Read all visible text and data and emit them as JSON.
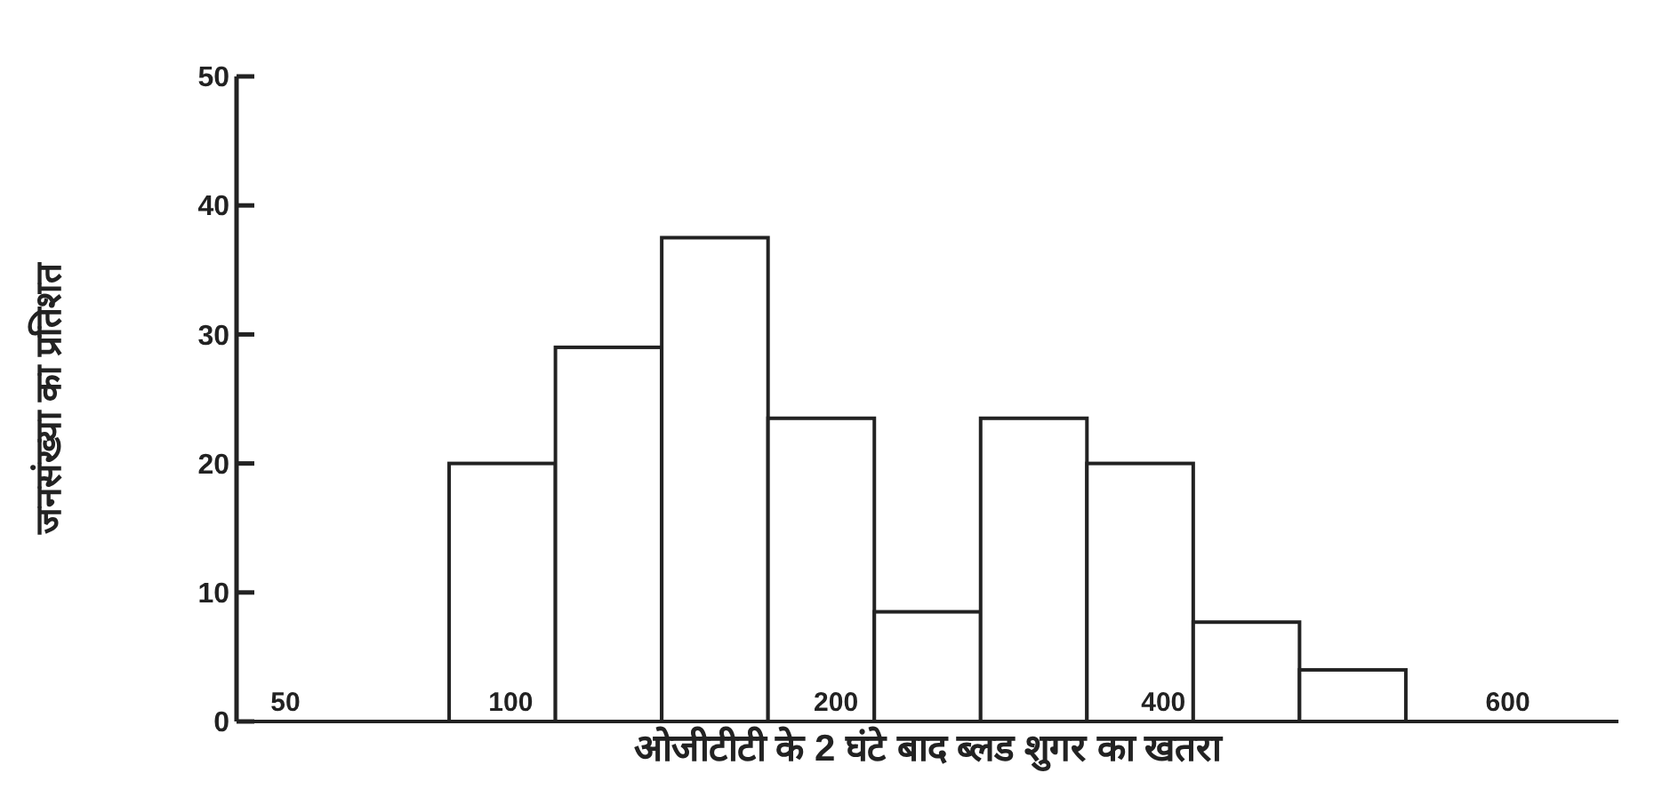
{
  "chart_data": {
    "type": "bar",
    "xlabel": "ओजीटीटी के 2 घंटे बाद ब्लड शुगर का खतरा",
    "ylabel": "जनसंख्या का प्रतिशत",
    "categories": [
      null,
      null,
      null,
      null,
      null,
      null,
      null,
      null,
      null,
      null,
      null,
      null,
      null
    ],
    "values": [
      null,
      null,
      20,
      29,
      37.5,
      23.5,
      8.5,
      23.5,
      20,
      7.7,
      4,
      null,
      null
    ],
    "color": "#ffffff",
    "ylim": [
      0,
      50
    ],
    "yticks": [
      0,
      10,
      20,
      30,
      40,
      50
    ],
    "annotations": [
      "50",
      "100",
      "200",
      "400",
      "600"
    ]
  }
}
